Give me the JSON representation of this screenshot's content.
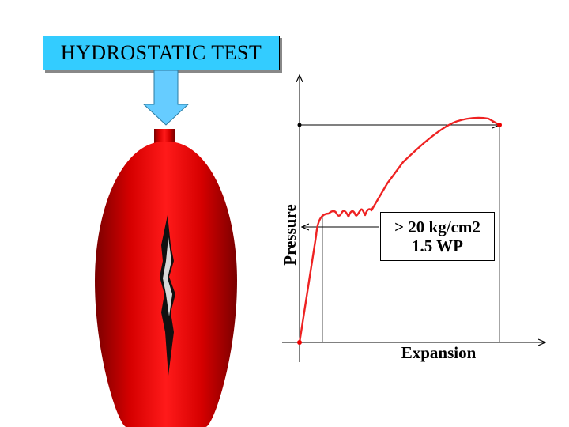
{
  "title": "HYDROSTATIC TEST",
  "axes": {
    "y_label": "Pressure",
    "x_label": "Expansion"
  },
  "annotation": {
    "line1": "> 20 kg/cm2",
    "line2": "1.5 WP"
  },
  "colors": {
    "title_box": "#33ccff",
    "arrow": "#66ccff",
    "vessel": "#ee0000",
    "curve": "#ee2222"
  },
  "icons": {
    "arrow": "down-arrow-icon",
    "vessel": "ruptured-cylinder-icon"
  }
}
